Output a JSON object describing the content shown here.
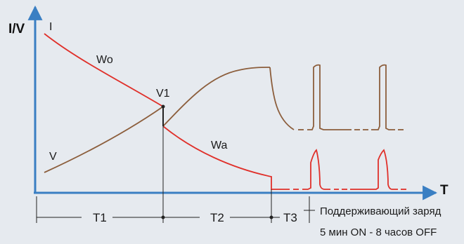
{
  "axes": {
    "y_title": "I/V",
    "x_title": "T",
    "color": "#3a7fc3"
  },
  "curves": {
    "current": {
      "label": "I",
      "color": "#e0302a"
    },
    "voltage": {
      "label": "V",
      "color": "#8c5e3c"
    }
  },
  "region_labels": {
    "w0": "Wo",
    "wa": "Wa",
    "v1": "V1"
  },
  "timeline": {
    "segments": [
      "T1",
      "T2",
      "T3"
    ],
    "float_charge_line1": "Поддерживающий заряд",
    "float_charge_line2": "5 мин ON - 8 часов OFF"
  }
}
